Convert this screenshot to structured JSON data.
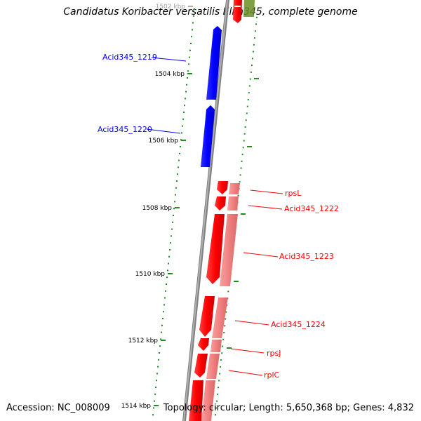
{
  "title": "Candidatus Koribacter versatilis Ellin345, complete genome",
  "footer": {
    "accession": "Accession: NC_008009",
    "summary": "Topology: circular; Length: 5,650,368 bp; Genes: 4,832"
  },
  "ruler": {
    "ticks": [
      "1502 kbp",
      "1504 kbp",
      "1506 kbp",
      "1508 kbp",
      "1510 kbp",
      "1512 kbp",
      "1514 kbp"
    ]
  },
  "genes": [
    {
      "name": "Acid345_1219",
      "strand": "+",
      "color": "#0000ff"
    },
    {
      "name": "Acid345_1220",
      "strand": "+",
      "color": "#0000ff"
    },
    {
      "name": "rpsL",
      "strand": "-",
      "color": "#ff0000"
    },
    {
      "name": "Acid345_1222",
      "strand": "-",
      "color": "#ff0000"
    },
    {
      "name": "Acid345_1223",
      "strand": "-",
      "color": "#ff0000"
    },
    {
      "name": "Acid345_1224",
      "strand": "-",
      "color": "#ff0000"
    },
    {
      "name": "rpsJ",
      "strand": "-",
      "color": "#ff0000"
    },
    {
      "name": "rplC",
      "strand": "-",
      "color": "#ff0000"
    }
  ],
  "colors": {
    "plus_strand": "#0000ff",
    "minus_strand": "#ff0000",
    "minus_strand_light": "#f08080",
    "top_feature": "#6b8e23",
    "backbone": "#808080",
    "tick": "#228b22"
  }
}
